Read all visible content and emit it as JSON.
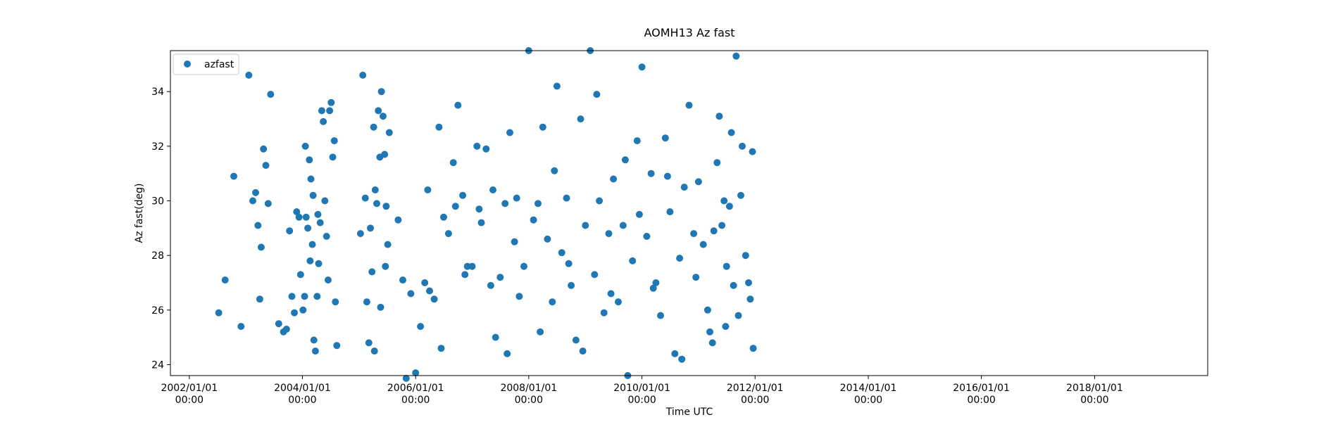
{
  "chart_data": {
    "type": "scatter",
    "title": "AOMH13 Az fast",
    "xlabel": "Time UTC",
    "ylabel": "Az fast(deg)",
    "x_tick_labels": [
      {
        "date": "2002/01/01",
        "time": "00:00"
      },
      {
        "date": "2004/01/01",
        "time": "00:00"
      },
      {
        "date": "2006/01/01",
        "time": "00:00"
      },
      {
        "date": "2008/01/01",
        "time": "00:00"
      },
      {
        "date": "2010/01/01",
        "time": "00:00"
      },
      {
        "date": "2012/01/01",
        "time": "00:00"
      },
      {
        "date": "2014/01/01",
        "time": "00:00"
      },
      {
        "date": "2016/01/01",
        "time": "00:00"
      },
      {
        "date": "2018/01/01",
        "time": "00:00"
      }
    ],
    "y_ticks": [
      24,
      26,
      28,
      30,
      32,
      34
    ],
    "xlim": [
      "2001/09/01",
      "2020/01/01"
    ],
    "ylim": [
      23.6,
      35.5
    ],
    "grid": false,
    "legend_position": "top-left",
    "marker_color": "#1f77b4",
    "series": [
      {
        "name": "azfast",
        "points": [
          [
            "2002/07/10",
            25.9
          ],
          [
            "2002/08/20",
            27.1
          ],
          [
            "2002/10/15",
            30.9
          ],
          [
            "2002/12/01",
            25.4
          ],
          [
            "2003/01/20",
            34.6
          ],
          [
            "2003/02/15",
            30.0
          ],
          [
            "2003/03/05",
            30.3
          ],
          [
            "2003/03/20",
            29.1
          ],
          [
            "2003/04/10",
            28.3
          ],
          [
            "2003/04/25",
            31.9
          ],
          [
            "2003/05/10",
            31.3
          ],
          [
            "2003/05/25",
            29.9
          ],
          [
            "2003/06/10",
            33.9
          ],
          [
            "2003/04/01",
            26.4
          ],
          [
            "2003/08/01",
            25.5
          ],
          [
            "2003/09/01",
            25.2
          ],
          [
            "2003/09/20",
            25.3
          ],
          [
            "2003/10/10",
            28.9
          ],
          [
            "2003/10/25",
            26.5
          ],
          [
            "2003/11/10",
            25.9
          ],
          [
            "2003/11/25",
            29.6
          ],
          [
            "2003/12/10",
            29.4
          ],
          [
            "2003/12/20",
            27.3
          ],
          [
            "2004/01/05",
            26.0
          ],
          [
            "2004/01/15",
            26.5
          ],
          [
            "2004/01/25",
            29.4
          ],
          [
            "2004/02/05",
            29.0
          ],
          [
            "2004/02/15",
            31.5
          ],
          [
            "2004/02/25",
            30.8
          ],
          [
            "2004/03/05",
            28.4
          ],
          [
            "2004/03/15",
            24.9
          ],
          [
            "2004/03/25",
            24.5
          ],
          [
            "2004/04/05",
            26.5
          ],
          [
            "2004/04/15",
            27.7
          ],
          [
            "2004/04/25",
            29.2
          ],
          [
            "2004/05/05",
            33.3
          ],
          [
            "2004/05/15",
            32.9
          ],
          [
            "2004/05/25",
            30.0
          ],
          [
            "2004/06/05",
            28.7
          ],
          [
            "2004/06/15",
            27.1
          ],
          [
            "2004/06/25",
            33.3
          ],
          [
            "2004/07/05",
            33.6
          ],
          [
            "2004/07/15",
            31.6
          ],
          [
            "2004/07/25",
            32.2
          ],
          [
            "2004/08/01",
            26.3
          ],
          [
            "2004/08/10",
            24.7
          ],
          [
            "2004/02/20",
            27.8
          ],
          [
            "2004/03/10",
            30.2
          ],
          [
            "2004/04/10",
            29.5
          ],
          [
            "2004/01/20",
            32.0
          ],
          [
            "2005/01/10",
            28.8
          ],
          [
            "2005/01/25",
            34.6
          ],
          [
            "2005/02/10",
            30.1
          ],
          [
            "2005/02/20",
            26.3
          ],
          [
            "2005/03/05",
            24.8
          ],
          [
            "2005/03/15",
            29.0
          ],
          [
            "2005/03/25",
            27.4
          ],
          [
            "2005/04/05",
            32.7
          ],
          [
            "2005/04/15",
            30.4
          ],
          [
            "2005/04/25",
            29.9
          ],
          [
            "2005/05/05",
            33.3
          ],
          [
            "2005/05/15",
            31.6
          ],
          [
            "2005/05/25",
            34.0
          ],
          [
            "2005/06/05",
            33.1
          ],
          [
            "2005/06/15",
            31.7
          ],
          [
            "2005/06/25",
            29.8
          ],
          [
            "2005/07/05",
            28.4
          ],
          [
            "2005/07/15",
            32.5
          ],
          [
            "2005/04/10",
            24.5
          ],
          [
            "2005/05/20",
            26.1
          ],
          [
            "2005/06/20",
            27.6
          ],
          [
            "2005/09/10",
            29.3
          ],
          [
            "2005/10/10",
            27.1
          ],
          [
            "2005/11/01",
            23.5
          ],
          [
            "2005/12/01",
            26.6
          ],
          [
            "2006/01/01",
            23.7
          ],
          [
            "2006/02/01",
            25.4
          ],
          [
            "2006/03/01",
            27.0
          ],
          [
            "2006/04/01",
            26.7
          ],
          [
            "2006/05/01",
            26.4
          ],
          [
            "2006/06/01",
            32.7
          ],
          [
            "2006/07/01",
            29.4
          ],
          [
            "2006/08/01",
            28.8
          ],
          [
            "2006/09/01",
            31.4
          ],
          [
            "2006/10/01",
            33.5
          ],
          [
            "2006/11/01",
            30.2
          ],
          [
            "2006/12/01",
            27.6
          ],
          [
            "2006/06/15",
            24.6
          ],
          [
            "2006/09/15",
            29.8
          ],
          [
            "2006/03/20",
            30.4
          ],
          [
            "2006/11/15",
            27.3
          ],
          [
            "2007/01/01",
            27.6
          ],
          [
            "2007/02/01",
            32.0
          ],
          [
            "2007/03/01",
            29.2
          ],
          [
            "2007/04/01",
            31.9
          ],
          [
            "2007/05/01",
            26.9
          ],
          [
            "2007/06/01",
            25.0
          ],
          [
            "2007/07/01",
            27.2
          ],
          [
            "2007/08/01",
            29.9
          ],
          [
            "2007/09/01",
            32.5
          ],
          [
            "2007/10/01",
            28.5
          ],
          [
            "2007/11/01",
            26.5
          ],
          [
            "2007/12/01",
            27.6
          ],
          [
            "2007/02/15",
            29.7
          ],
          [
            "2007/05/15",
            30.4
          ],
          [
            "2007/08/15",
            24.4
          ],
          [
            "2007/10/15",
            30.1
          ],
          [
            "2008/01/01",
            35.5
          ],
          [
            "2008/02/01",
            29.3
          ],
          [
            "2008/03/01",
            29.9
          ],
          [
            "2008/04/01",
            32.7
          ],
          [
            "2008/05/01",
            28.6
          ],
          [
            "2008/06/01",
            26.3
          ],
          [
            "2008/07/01",
            34.2
          ],
          [
            "2008/08/01",
            28.1
          ],
          [
            "2008/09/01",
            30.1
          ],
          [
            "2008/10/01",
            26.9
          ],
          [
            "2008/11/01",
            24.9
          ],
          [
            "2008/12/01",
            33.0
          ],
          [
            "2008/03/15",
            25.2
          ],
          [
            "2008/06/15",
            31.1
          ],
          [
            "2008/09/15",
            27.7
          ],
          [
            "2008/12/15",
            24.5
          ],
          [
            "2009/01/01",
            29.1
          ],
          [
            "2009/02/01",
            35.5
          ],
          [
            "2009/03/01",
            27.3
          ],
          [
            "2009/04/01",
            30.0
          ],
          [
            "2009/05/01",
            25.9
          ],
          [
            "2009/06/01",
            28.8
          ],
          [
            "2009/07/01",
            30.8
          ],
          [
            "2009/08/01",
            26.3
          ],
          [
            "2009/09/01",
            29.1
          ],
          [
            "2009/10/01",
            23.6
          ],
          [
            "2009/11/01",
            27.8
          ],
          [
            "2009/12/01",
            32.2
          ],
          [
            "2009/03/15",
            33.9
          ],
          [
            "2009/06/15",
            26.6
          ],
          [
            "2009/09/15",
            31.5
          ],
          [
            "2009/12/15",
            29.5
          ],
          [
            "2010/01/01",
            34.9
          ],
          [
            "2010/02/01",
            28.7
          ],
          [
            "2010/03/01",
            31.0
          ],
          [
            "2010/04/01",
            27.0
          ],
          [
            "2010/05/01",
            25.8
          ],
          [
            "2010/06/01",
            32.3
          ],
          [
            "2010/07/01",
            29.6
          ],
          [
            "2010/08/01",
            24.4
          ],
          [
            "2010/09/01",
            27.9
          ],
          [
            "2010/10/01",
            30.5
          ],
          [
            "2010/11/01",
            33.5
          ],
          [
            "2010/12/01",
            28.8
          ],
          [
            "2010/03/15",
            26.8
          ],
          [
            "2010/06/15",
            30.9
          ],
          [
            "2010/09/15",
            24.2
          ],
          [
            "2010/12/15",
            27.2
          ],
          [
            "2011/01/01",
            30.7
          ],
          [
            "2011/02/01",
            28.4
          ],
          [
            "2011/03/01",
            26.0
          ],
          [
            "2011/04/01",
            24.8
          ],
          [
            "2011/05/01",
            31.4
          ],
          [
            "2011/06/01",
            29.1
          ],
          [
            "2011/07/01",
            27.6
          ],
          [
            "2011/08/01",
            32.5
          ],
          [
            "2011/09/01",
            35.3
          ],
          [
            "2011/10/01",
            30.2
          ],
          [
            "2011/11/01",
            28.0
          ],
          [
            "2011/12/01",
            26.4
          ],
          [
            "2011/03/15",
            25.2
          ],
          [
            "2011/06/15",
            30.0
          ],
          [
            "2011/09/15",
            25.8
          ],
          [
            "2011/12/15",
            31.8
          ],
          [
            "2011/04/10",
            28.9
          ],
          [
            "2011/07/20",
            29.8
          ],
          [
            "2011/10/10",
            32.0
          ],
          [
            "2011/11/20",
            27.0
          ],
          [
            "2011/12/20",
            24.6
          ],
          [
            "2011/08/15",
            26.9
          ],
          [
            "2011/05/15",
            33.1
          ],
          [
            "2011/06/25",
            25.4
          ]
        ]
      }
    ]
  },
  "legend": {
    "label": "azfast"
  }
}
